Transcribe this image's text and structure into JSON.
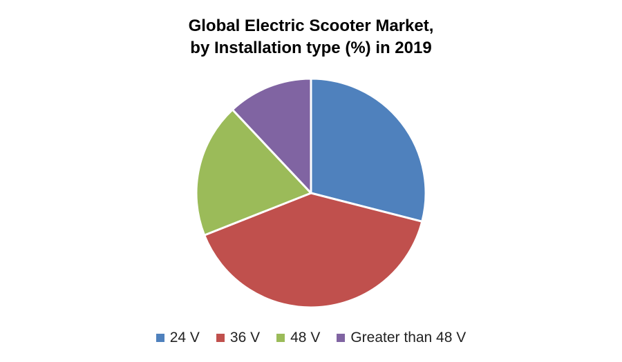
{
  "chart_data": {
    "type": "pie",
    "title_line1": "Global Electric Scooter Market,",
    "title_line2": "by Installation type (%) in 2019",
    "categories": [
      "24 V",
      "36 V",
      "48 V",
      "Greater than 48 V"
    ],
    "values": [
      29,
      40,
      19,
      12
    ],
    "colors": [
      "#4f81bd",
      "#c0504d",
      "#9bbb59",
      "#8064a2"
    ],
    "legend_position": "bottom"
  }
}
